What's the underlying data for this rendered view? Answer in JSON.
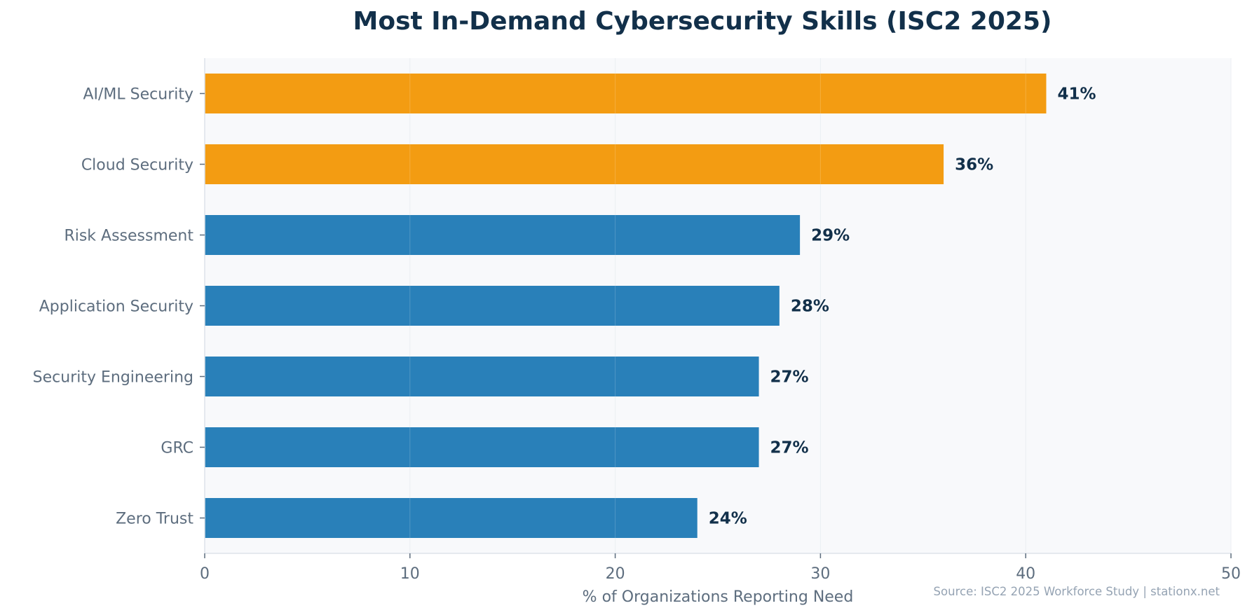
{
  "chart_data": {
    "type": "bar",
    "orientation": "horizontal",
    "title": "Most In-Demand Cybersecurity Skills (ISC2 2025)",
    "xlabel": "% of Organizations Reporting Need",
    "ylabel": "",
    "xlim": [
      0,
      50
    ],
    "xticks": [
      0,
      10,
      20,
      30,
      40,
      50
    ],
    "grid": "vertical",
    "categories": [
      "AI/ML Security",
      "Cloud Security",
      "Risk Assessment",
      "Application Security",
      "Security Engineering",
      "GRC",
      "Zero Trust"
    ],
    "values": [
      41,
      36,
      29,
      28,
      27,
      27,
      24
    ],
    "data_labels": [
      "41%",
      "36%",
      "29%",
      "28%",
      "27%",
      "27%",
      "24%"
    ],
    "bar_colors": [
      "#f39c12",
      "#f39c12",
      "#2980b9",
      "#2980b9",
      "#2980b9",
      "#2980b9",
      "#2980b9"
    ],
    "annotation": "Source: ISC2 2025 Workforce Study | stationx.net"
  },
  "colors": {
    "highlight": "#f39c12",
    "default": "#2980b9",
    "title": "#12304a",
    "axis_text": "#5d6d7e",
    "plot_background": "#f8f9fb"
  }
}
